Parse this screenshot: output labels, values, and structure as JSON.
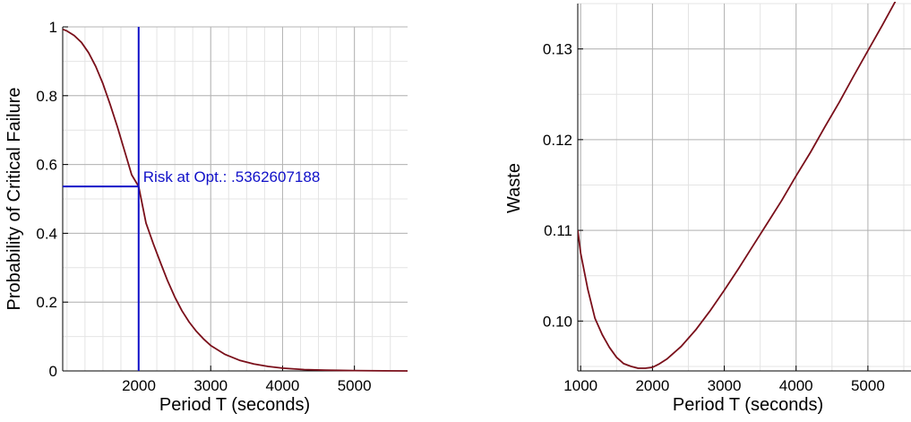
{
  "chart_data": [
    {
      "type": "line",
      "title": "",
      "xlabel": "Period T (seconds)",
      "ylabel": "Probability of Critical Failure",
      "xlim": [
        940,
        5740
      ],
      "ylim": [
        0,
        1
      ],
      "x_ticks": [
        2000,
        3000,
        4000,
        5000
      ],
      "y_ticks": [
        0,
        0.2,
        0.4,
        0.6,
        0.8,
        1
      ],
      "y_tick_labels": [
        "0",
        "0.2",
        "0.4",
        "0.6",
        "0.8",
        "1"
      ],
      "grid": true,
      "line_color": "#7a0f1a",
      "series": [
        {
          "x": [
            940,
            1000,
            1100,
            1200,
            1300,
            1400,
            1500,
            1600,
            1700,
            1800,
            1900,
            1997,
            2100,
            2200,
            2300,
            2400,
            2500,
            2600,
            2700,
            2800,
            2900,
            3000,
            3200,
            3400,
            3600,
            3800,
            4000,
            4300,
            4600,
            5000,
            5400,
            5740
          ],
          "y": [
            0.993,
            0.988,
            0.975,
            0.955,
            0.925,
            0.885,
            0.835,
            0.775,
            0.71,
            0.64,
            0.57,
            0.5363,
            0.43,
            0.37,
            0.315,
            0.262,
            0.215,
            0.175,
            0.142,
            0.115,
            0.093,
            0.074,
            0.048,
            0.031,
            0.02,
            0.013,
            0.008,
            0.004,
            0.002,
            0.001,
            0.0003,
            0.0001
          ]
        }
      ],
      "annotations": [
        {
          "text": "Risk at Opt.: .5362607188",
          "x": 1997,
          "y": 0.5362607188,
          "color": "#1010c8"
        }
      ]
    },
    {
      "type": "line",
      "title": "",
      "xlabel": "Period T (seconds)",
      "ylabel": "Waste",
      "xlim": [
        960,
        5600
      ],
      "ylim": [
        0.0945,
        0.135
      ],
      "x_ticks": [
        1000,
        2000,
        3000,
        4000,
        5000
      ],
      "y_ticks": [
        0.1,
        0.11,
        0.12,
        0.13
      ],
      "y_tick_labels": [
        "0.10",
        "0.11",
        "0.12",
        "0.13"
      ],
      "grid": true,
      "line_color": "#7a0f1a",
      "series": [
        {
          "x": [
            960,
            1000,
            1100,
            1200,
            1300,
            1400,
            1500,
            1600,
            1700,
            1800,
            1900,
            2000,
            2100,
            2200,
            2400,
            2600,
            2800,
            3000,
            3200,
            3400,
            3600,
            3800,
            4000,
            4200,
            4400,
            4600,
            4800,
            5000,
            5200,
            5400,
            5600
          ],
          "y": [
            0.11,
            0.1075,
            0.1035,
            0.1003,
            0.0985,
            0.0971,
            0.096,
            0.0953,
            0.095,
            0.0948,
            0.0948,
            0.0949,
            0.0953,
            0.0958,
            0.0972,
            0.099,
            0.1011,
            0.1034,
            0.1058,
            0.1083,
            0.1108,
            0.1133,
            0.116,
            0.1186,
            0.1214,
            0.1241,
            0.127,
            0.1298,
            0.1326,
            0.1355,
            0.1385
          ]
        }
      ]
    }
  ]
}
